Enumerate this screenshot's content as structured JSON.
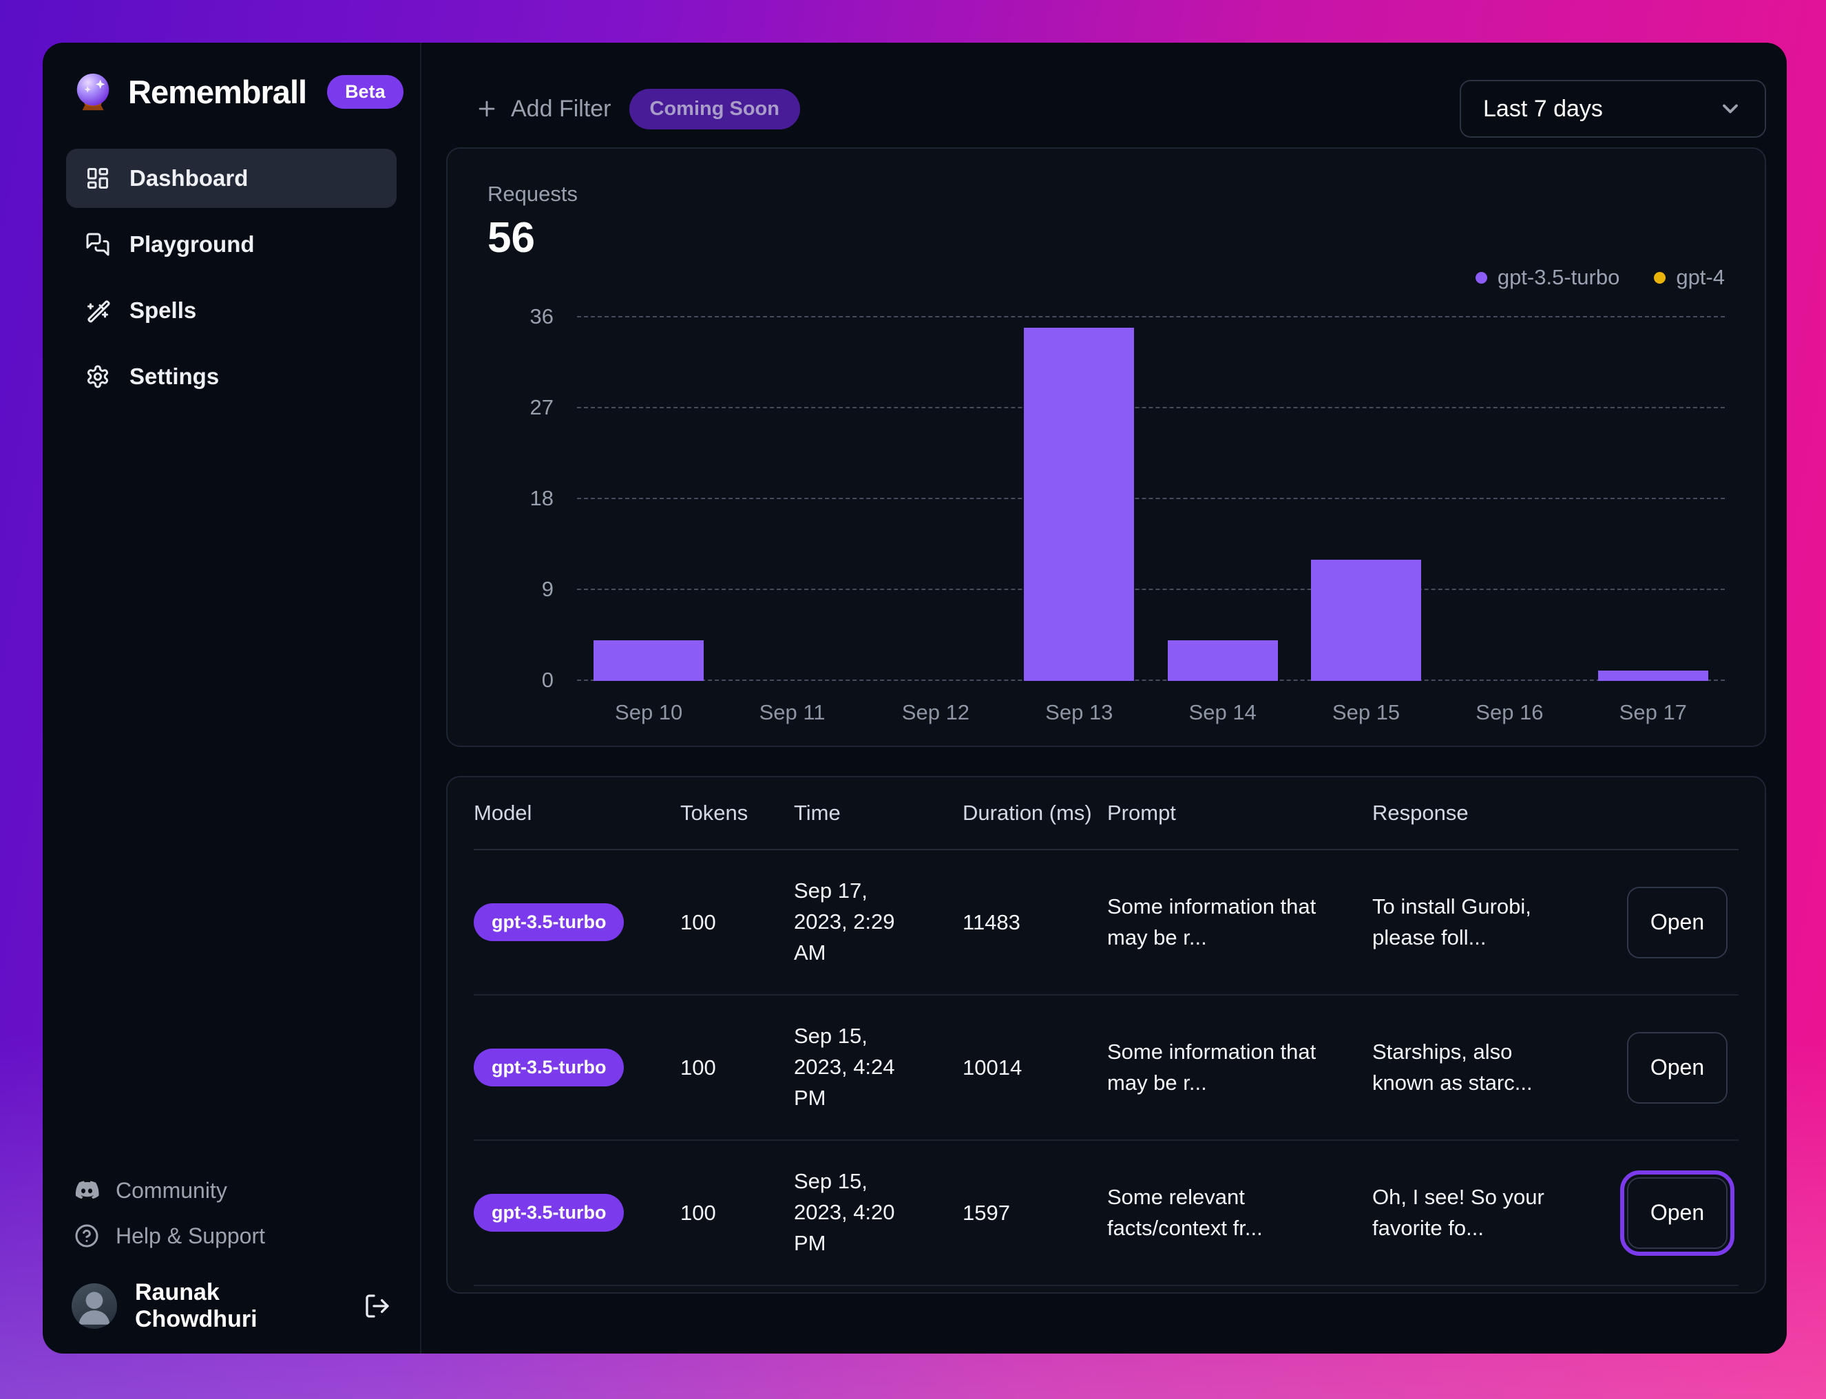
{
  "app": {
    "name": "Remembrall",
    "badge": "Beta"
  },
  "sidebar": {
    "items": [
      {
        "label": "Dashboard",
        "icon": "dashboard-icon",
        "active": true
      },
      {
        "label": "Playground",
        "icon": "chat-bubbles-icon",
        "active": false
      },
      {
        "label": "Spells",
        "icon": "magic-wand-icon",
        "active": false
      },
      {
        "label": "Settings",
        "icon": "gear-icon",
        "active": false
      }
    ],
    "footer_items": [
      {
        "label": "Community",
        "icon": "discord-icon"
      },
      {
        "label": "Help & Support",
        "icon": "help-circle-icon"
      }
    ],
    "user": {
      "name": "Raunak Chowdhuri",
      "logout_icon": "logout-icon"
    }
  },
  "topbar": {
    "add_filter_label": "Add Filter",
    "coming_soon_label": "Coming Soon",
    "date_range": "Last 7 days"
  },
  "chart_data": {
    "type": "bar",
    "title": "Requests",
    "total_label": "Requests",
    "total_value": "56",
    "categories": [
      "Sep 10",
      "Sep 11",
      "Sep 12",
      "Sep 13",
      "Sep 14",
      "Sep 15",
      "Sep 16",
      "Sep 17"
    ],
    "series": [
      {
        "name": "gpt-3.5-turbo",
        "color": "#8b5cf6",
        "values": [
          4,
          0,
          0,
          35,
          4,
          12,
          0,
          1
        ]
      },
      {
        "name": "gpt-4",
        "color": "#eab308",
        "values": [
          0,
          0,
          0,
          0,
          0,
          0,
          0,
          0
        ]
      }
    ],
    "ylim": [
      0,
      36
    ],
    "yticks": [
      0,
      9,
      18,
      27,
      36
    ],
    "grid": true,
    "legend_position": "top-right"
  },
  "table": {
    "columns": [
      "Model",
      "Tokens",
      "Time",
      "Duration (ms)",
      "Prompt",
      "Response"
    ],
    "open_label": "Open",
    "rows": [
      {
        "model": "gpt-3.5-turbo",
        "tokens": "100",
        "time": "Sep 17, 2023, 2:29 AM",
        "duration": "11483",
        "prompt": "Some information that may be r...",
        "response": "To install Gurobi, please foll...",
        "open_highlighted": false
      },
      {
        "model": "gpt-3.5-turbo",
        "tokens": "100",
        "time": "Sep 15, 2023, 4:24 PM",
        "duration": "10014",
        "prompt": "Some information that may be r...",
        "response": "Starships, also known as starc...",
        "open_highlighted": false
      },
      {
        "model": "gpt-3.5-turbo",
        "tokens": "100",
        "time": "Sep 15, 2023, 4:20 PM",
        "duration": "1597",
        "prompt": "Some relevant facts/context fr...",
        "response": "Oh, I see! So your favorite fo...",
        "open_highlighted": true
      }
    ]
  },
  "colors": {
    "accent": "#7c3aed",
    "bar": "#8b5cf6",
    "gpt4": "#eab308",
    "bg_gradient_start": "#5a0ec6",
    "bg_gradient_end": "#ee1390",
    "card_bg": "#0a0f18"
  }
}
